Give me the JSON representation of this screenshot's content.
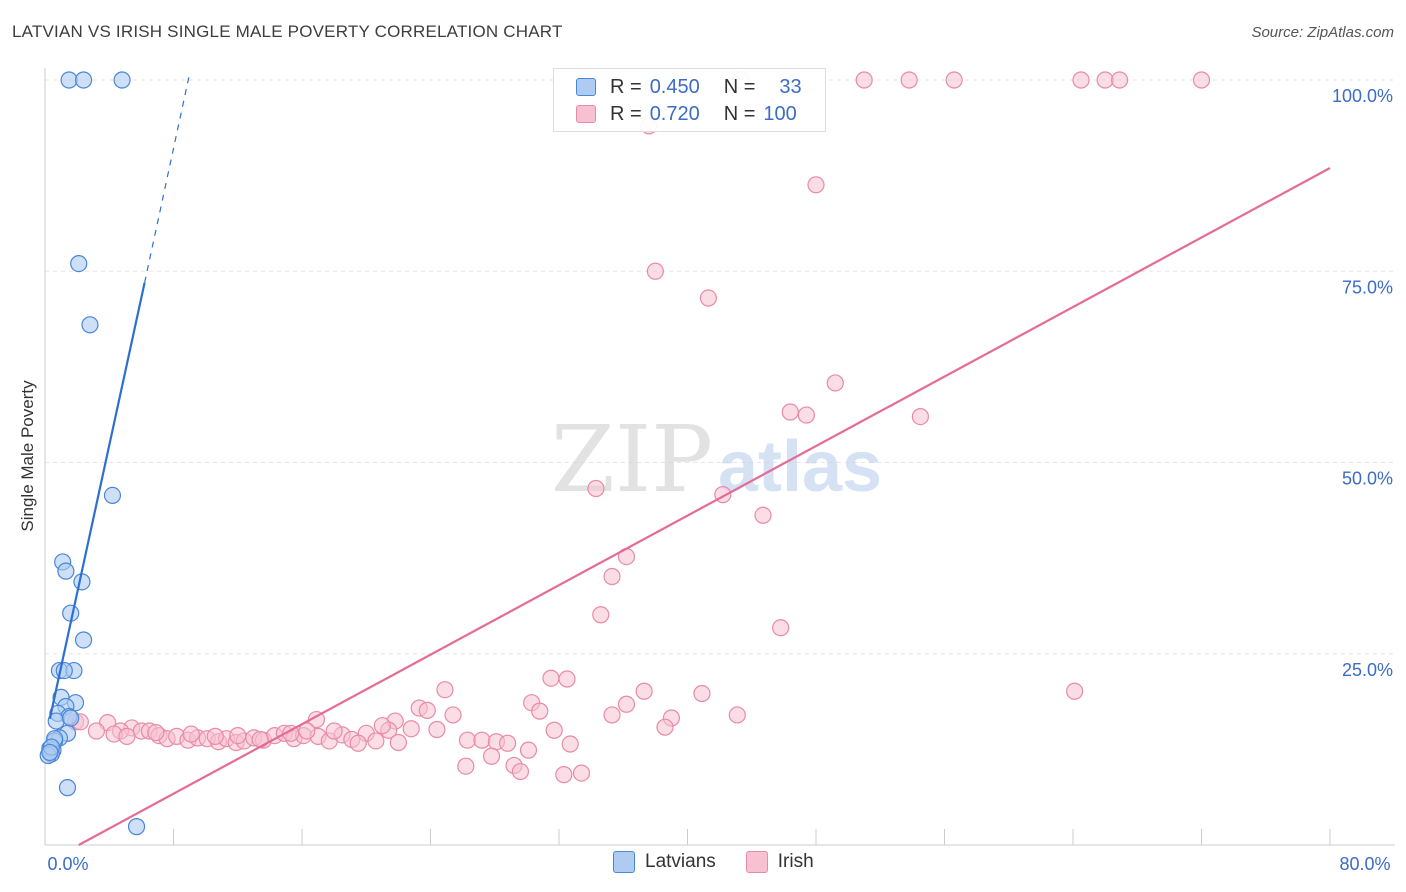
{
  "title": "LATVIAN VS IRISH SINGLE MALE POVERTY CORRELATION CHART",
  "source": "Source: ZipAtlas.com",
  "watermark": {
    "zip": "ZIP",
    "atlas": "atlas"
  },
  "legend": {
    "latvians": {
      "r_label": "R =",
      "r_value": "0.450",
      "n_label": "N =",
      "n_value": "33"
    },
    "irish": {
      "r_label": "R =",
      "r_value": "0.720",
      "n_label": "N =",
      "n_value": "100"
    }
  },
  "bottom_legend": {
    "latvians": "Latvians",
    "irish": "Irish"
  },
  "colors": {
    "latvians_fill": "#aecbf2",
    "latvians_stroke": "#4a86d8",
    "latvians_line": "#2e6fd0",
    "irish_fill": "#f7c1d2",
    "irish_stroke": "#e98aa8",
    "irish_line": "#e56b94",
    "tick_label": "#3b6cc7",
    "grid": "#e6e6e6"
  },
  "chart_data": {
    "type": "scatter",
    "title": "LATVIAN VS IRISH SINGLE MALE POVERTY CORRELATION CHART",
    "xlabel": "",
    "ylabel": "Single Male Poverty",
    "xlim": [
      0,
      80
    ],
    "ylim": [
      0,
      100
    ],
    "x_tick_labels": {
      "left": "0.0%",
      "right": "80.0%"
    },
    "y_ticks": [
      {
        "value": 25,
        "label": "25.0%"
      },
      {
        "value": 50,
        "label": "50.0%"
      },
      {
        "value": 75,
        "label": "75.0%"
      },
      {
        "value": 100,
        "label": "100.0%"
      }
    ],
    "series": [
      {
        "name": "Latvians",
        "r": 0.45,
        "n": 33,
        "trend": {
          "x0": 0.3,
          "y0": 16.5,
          "x1": 6.2,
          "y1": 73.5,
          "dash_to_x": 9.0,
          "dash_to_y": 100.8
        },
        "points": [
          [
            1.5,
            100
          ],
          [
            2.4,
            100
          ],
          [
            4.8,
            100
          ],
          [
            2.1,
            76
          ],
          [
            2.8,
            68
          ],
          [
            4.2,
            45.7
          ],
          [
            1.1,
            37
          ],
          [
            1.3,
            35.8
          ],
          [
            2.3,
            34.4
          ],
          [
            1.6,
            30.3
          ],
          [
            2.4,
            26.8
          ],
          [
            0.9,
            22.8
          ],
          [
            1.8,
            22.8
          ],
          [
            1.0,
            19.3
          ],
          [
            1.9,
            18.6
          ],
          [
            1.3,
            18.1
          ],
          [
            0.8,
            17.2
          ],
          [
            1.5,
            16.8
          ],
          [
            0.7,
            16.2
          ],
          [
            1.4,
            14.6
          ],
          [
            0.9,
            14.0
          ],
          [
            0.6,
            13.6
          ],
          [
            0.3,
            12.6
          ],
          [
            0.5,
            12.4
          ],
          [
            0.4,
            11.9
          ],
          [
            0.2,
            11.7
          ],
          [
            1.4,
            7.5
          ],
          [
            5.7,
            2.4
          ],
          [
            0.6,
            13.9
          ],
          [
            0.4,
            12.8
          ],
          [
            1.2,
            22.8
          ],
          [
            1.6,
            16.6
          ],
          [
            0.3,
            12.1
          ]
        ]
      },
      {
        "name": "Irish",
        "r": 0.72,
        "n": 100,
        "trend": {
          "x0": 2.1,
          "y0": 0,
          "x1": 80,
          "y1": 88.5
        },
        "points": [
          [
            51.0,
            100
          ],
          [
            53.8,
            100
          ],
          [
            56.6,
            100
          ],
          [
            64.5,
            100
          ],
          [
            66.0,
            100
          ],
          [
            66.9,
            100
          ],
          [
            72.0,
            100
          ],
          [
            43.3,
            100
          ],
          [
            37.6,
            94
          ],
          [
            48.0,
            86.3
          ],
          [
            38.0,
            75
          ],
          [
            41.3,
            71.5
          ],
          [
            49.2,
            60.4
          ],
          [
            46.4,
            56.6
          ],
          [
            47.4,
            56.2
          ],
          [
            54.5,
            56.0
          ],
          [
            34.3,
            46.6
          ],
          [
            42.2,
            45.8
          ],
          [
            44.7,
            43.1
          ],
          [
            36.2,
            37.7
          ],
          [
            35.3,
            35.1
          ],
          [
            34.6,
            30.1
          ],
          [
            45.8,
            28.4
          ],
          [
            31.5,
            21.8
          ],
          [
            32.5,
            21.7
          ],
          [
            24.9,
            20.3
          ],
          [
            37.3,
            20.1
          ],
          [
            64.1,
            20.1
          ],
          [
            40.9,
            19.8
          ],
          [
            30.3,
            18.6
          ],
          [
            36.2,
            18.4
          ],
          [
            23.3,
            17.9
          ],
          [
            23.8,
            17.6
          ],
          [
            30.8,
            17.5
          ],
          [
            25.4,
            17.0
          ],
          [
            35.3,
            17.0
          ],
          [
            43.1,
            17.0
          ],
          [
            39.0,
            16.6
          ],
          [
            16.9,
            16.4
          ],
          [
            21.8,
            16.2
          ],
          [
            38.6,
            15.4
          ],
          [
            24.4,
            15.1
          ],
          [
            31.7,
            15.0
          ],
          [
            1.9,
            16.1
          ],
          [
            2.2,
            16.1
          ],
          [
            3.9,
            16.0
          ],
          [
            5.4,
            15.3
          ],
          [
            4.7,
            14.9
          ],
          [
            3.2,
            14.9
          ],
          [
            6.0,
            14.9
          ],
          [
            6.5,
            14.9
          ],
          [
            7.1,
            14.3
          ],
          [
            7.6,
            13.9
          ],
          [
            8.2,
            14.2
          ],
          [
            8.9,
            13.7
          ],
          [
            9.5,
            14.0
          ],
          [
            10.1,
            13.9
          ],
          [
            10.8,
            13.5
          ],
          [
            11.3,
            13.9
          ],
          [
            11.9,
            13.4
          ],
          [
            12.4,
            13.6
          ],
          [
            13.0,
            14.0
          ],
          [
            13.6,
            13.7
          ],
          [
            14.3,
            14.3
          ],
          [
            14.9,
            14.6
          ],
          [
            15.5,
            13.9
          ],
          [
            16.1,
            14.3
          ],
          [
            17.0,
            14.2
          ],
          [
            17.7,
            13.6
          ],
          [
            18.5,
            14.4
          ],
          [
            19.1,
            13.8
          ],
          [
            20.0,
            14.6
          ],
          [
            20.6,
            13.6
          ],
          [
            21.4,
            15.0
          ],
          [
            22.0,
            13.4
          ],
          [
            22.8,
            15.2
          ],
          [
            4.3,
            14.5
          ],
          [
            5.1,
            14.2
          ],
          [
            6.9,
            14.7
          ],
          [
            9.1,
            14.5
          ],
          [
            10.6,
            14.2
          ],
          [
            12.0,
            14.3
          ],
          [
            13.4,
            13.8
          ],
          [
            15.3,
            14.6
          ],
          [
            16.3,
            14.9
          ],
          [
            18.0,
            14.9
          ],
          [
            19.5,
            13.3
          ],
          [
            21.0,
            15.6
          ],
          [
            26.3,
            13.7
          ],
          [
            27.2,
            13.7
          ],
          [
            28.1,
            13.5
          ],
          [
            28.8,
            13.3
          ],
          [
            27.8,
            11.6
          ],
          [
            29.2,
            10.4
          ],
          [
            30.1,
            12.4
          ],
          [
            32.7,
            13.2
          ],
          [
            26.2,
            10.3
          ],
          [
            29.6,
            9.6
          ],
          [
            32.3,
            9.2
          ],
          [
            33.4,
            9.4
          ]
        ]
      }
    ]
  }
}
